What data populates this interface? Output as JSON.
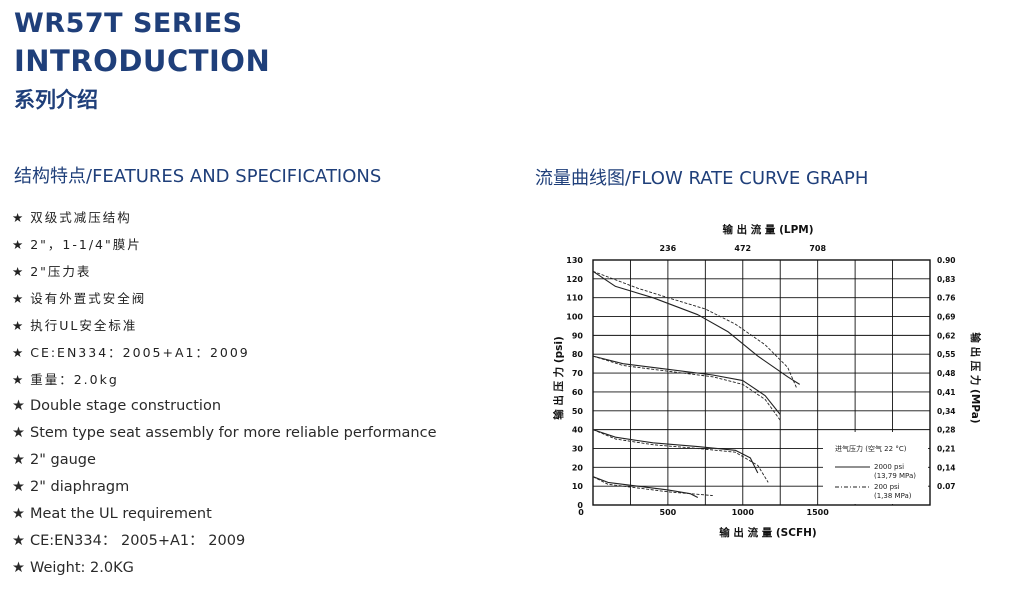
{
  "header": {
    "title_line1": "WR57T SERIES",
    "title_line2": "INTRODUCTION",
    "title_cn": "系列介绍"
  },
  "features": {
    "heading": "结构特点/FEATURES AND SPECIFICATIONS",
    "star": "★",
    "items_cn": [
      "双级式减压结构",
      "2\"，1-1/4\"膜片",
      "2\"压力表",
      "设有外置式安全阀",
      "执行UL安全标准",
      "CE:EN334：2005+A1：2009",
      "重量：2.0kg"
    ],
    "items_en": [
      "Double stage construction",
      "Stem type seat assembly for more reliable performance",
      "2\" gauge",
      "2\" diaphragm",
      "Meat the UL requirement",
      "CE:EN334： 2005+A1： 2009",
      "Weight: 2.0KG"
    ]
  },
  "chart": {
    "heading": "流量曲线图/FLOW RATE CURVE GRAPH",
    "top_axis_title": "输 出 流 量 (LPM)",
    "bottom_axis_title": "输 出 流 量 (SCFH)",
    "left_axis_title": "输 出 压 力 (psi)",
    "right_axis_title": "输 出 压 力 (MPa)",
    "legend_title": "进气压力 (空气 22 °C)",
    "legend_solid_line1": "2000 psi",
    "legend_solid_line2": "(13,79 MPa)",
    "legend_dash_line1": "200 psi",
    "legend_dash_line2": "(1,38 MPa)"
  },
  "chart_data": {
    "type": "line",
    "x_scfh_ticks": [
      "0",
      "500",
      "1000",
      "1500"
    ],
    "x_scfh_range": [
      0,
      2250
    ],
    "x_lpm_ticks": [
      "236",
      "472",
      "708"
    ],
    "y_psi_ticks": [
      "0",
      "10",
      "20",
      "30",
      "40",
      "50",
      "60",
      "70",
      "80",
      "90",
      "100",
      "110",
      "120",
      "130"
    ],
    "y_psi_range": [
      0,
      130
    ],
    "y_mpa_ticks": [
      "0.07",
      "0,14",
      "0,21",
      "0,28",
      "0,34",
      "0,41",
      "0,48",
      "0,55",
      "0,62",
      "0,69",
      "0.76",
      "0,83",
      "0.90"
    ],
    "grid": true,
    "legend": "bottom-right",
    "series": [
      {
        "group": "2000 psi",
        "style": "solid",
        "points": [
          [
            0,
            124
          ],
          [
            150,
            116
          ],
          [
            400,
            110
          ],
          [
            700,
            101
          ],
          [
            900,
            92
          ],
          [
            1100,
            79
          ],
          [
            1300,
            68
          ],
          [
            1380,
            64
          ]
        ]
      },
      {
        "group": "200 psi",
        "style": "dashed",
        "points": [
          [
            0,
            124
          ],
          [
            300,
            115
          ],
          [
            500,
            110
          ],
          [
            750,
            104
          ],
          [
            950,
            96
          ],
          [
            1150,
            85
          ],
          [
            1300,
            73
          ],
          [
            1360,
            62
          ]
        ]
      },
      {
        "group": "2000 psi",
        "style": "solid",
        "points": [
          [
            0,
            79
          ],
          [
            200,
            75
          ],
          [
            500,
            72
          ],
          [
            800,
            69
          ],
          [
            1000,
            66
          ],
          [
            1150,
            58
          ],
          [
            1250,
            48
          ]
        ]
      },
      {
        "group": "200 psi",
        "style": "dashed",
        "points": [
          [
            0,
            79
          ],
          [
            200,
            74
          ],
          [
            500,
            71
          ],
          [
            800,
            68
          ],
          [
            1000,
            64
          ],
          [
            1150,
            56
          ],
          [
            1250,
            45
          ]
        ]
      },
      {
        "group": "2000 psi",
        "style": "solid",
        "points": [
          [
            0,
            40
          ],
          [
            150,
            36
          ],
          [
            400,
            33
          ],
          [
            700,
            31
          ],
          [
            950,
            29
          ],
          [
            1050,
            25
          ],
          [
            1100,
            17
          ]
        ]
      },
      {
        "group": "200 psi",
        "style": "dashed",
        "points": [
          [
            0,
            40
          ],
          [
            150,
            35
          ],
          [
            400,
            32
          ],
          [
            700,
            30
          ],
          [
            950,
            28
          ],
          [
            1100,
            21
          ],
          [
            1170,
            12
          ]
        ]
      },
      {
        "group": "2000 psi",
        "style": "solid",
        "points": [
          [
            0,
            15
          ],
          [
            100,
            12
          ],
          [
            300,
            10
          ],
          [
            500,
            8
          ],
          [
            650,
            6
          ],
          [
            700,
            4
          ]
        ]
      },
      {
        "group": "200 psi",
        "style": "dashed",
        "points": [
          [
            0,
            15
          ],
          [
            100,
            11
          ],
          [
            300,
            9
          ],
          [
            500,
            7
          ],
          [
            650,
            6
          ],
          [
            800,
            5
          ]
        ]
      }
    ]
  }
}
